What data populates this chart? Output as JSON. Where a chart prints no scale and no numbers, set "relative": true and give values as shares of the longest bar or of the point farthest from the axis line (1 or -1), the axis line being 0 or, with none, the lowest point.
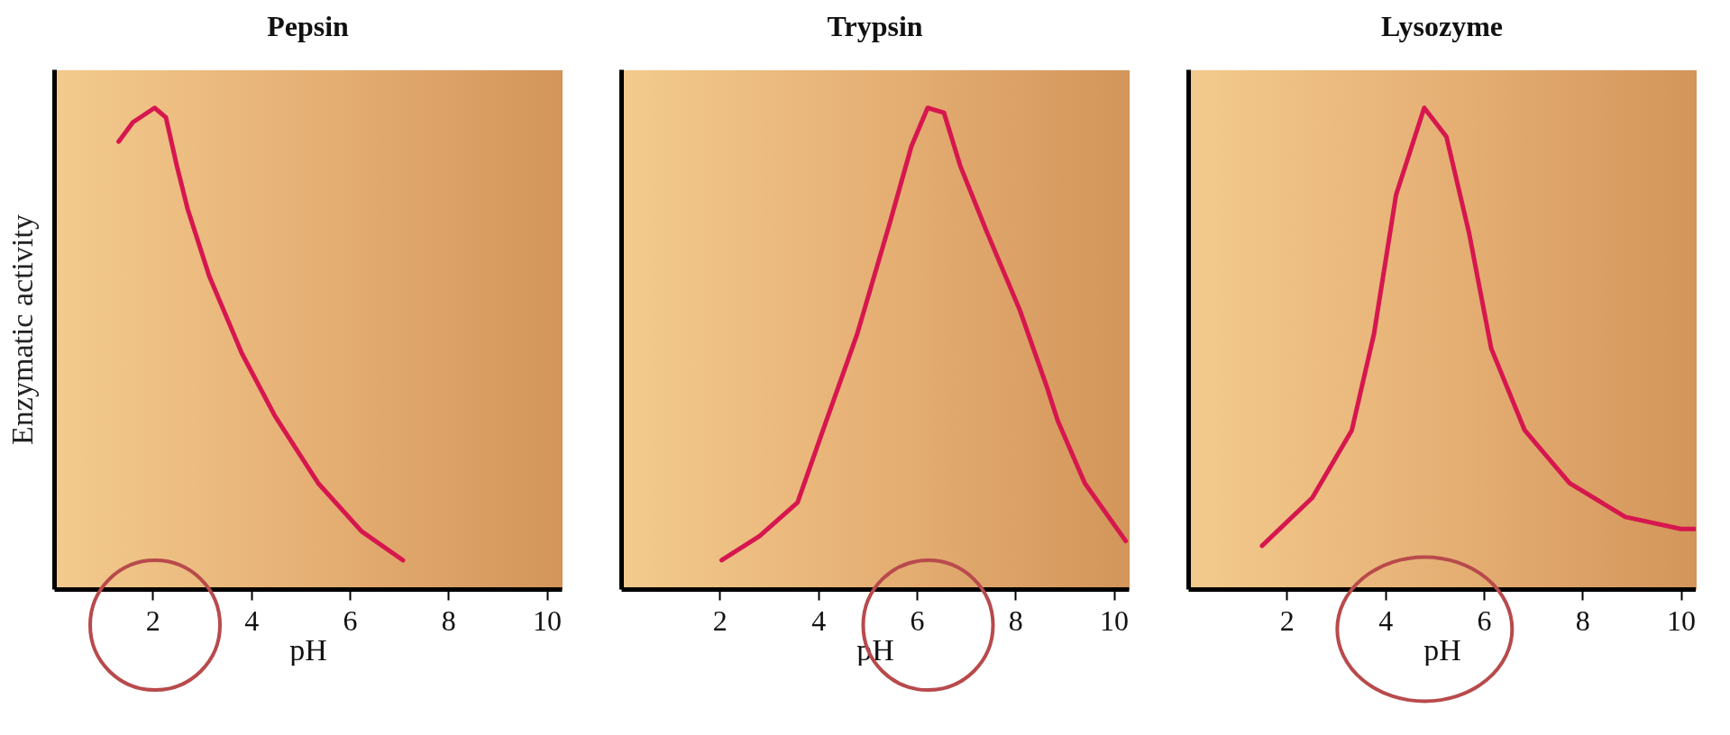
{
  "chart_data": [
    {
      "type": "line",
      "title": "Pepsin",
      "xlabel": "pH",
      "ylabel": "Enzymatic activity",
      "relative": true,
      "xlim": [
        0,
        10.3
      ],
      "xticks": [
        2,
        4,
        6,
        8,
        10
      ],
      "tick_labels": "x",
      "series": [
        {
          "color": "#d6174f",
          "x": [
            1.31,
            1.6,
            2.04,
            2.27,
            2.49,
            2.71,
            3.15,
            3.81,
            4.48,
            5.36,
            6.24,
            7.08
          ],
          "values": [
            0.93,
            0.97,
            1.0,
            0.98,
            0.88,
            0.79,
            0.65,
            0.49,
            0.36,
            0.22,
            0.12,
            0.06
          ]
        }
      ]
    },
    {
      "type": "line",
      "title": "Trypsin",
      "xlabel": "pH",
      "relative": true,
      "xlim": [
        0,
        10.3
      ],
      "xticks": [
        2,
        4,
        6,
        8,
        10
      ],
      "tick_labels": "x",
      "series": [
        {
          "color": "#d6174f",
          "x": [
            2.04,
            2.81,
            3.58,
            4.13,
            4.79,
            5.45,
            5.89,
            6.22,
            6.55,
            6.88,
            7.43,
            8.09,
            8.64,
            8.86,
            9.41,
            10.24
          ],
          "values": [
            0.06,
            0.11,
            0.18,
            0.34,
            0.53,
            0.76,
            0.92,
            1.0,
            0.99,
            0.88,
            0.74,
            0.58,
            0.42,
            0.35,
            0.22,
            0.1
          ]
        }
      ]
    },
    {
      "type": "line",
      "title": "Lysozyme",
      "xlabel": "pH",
      "relative": true,
      "xlim": [
        0,
        10.3
      ],
      "xticks": [
        2,
        4,
        6,
        8,
        10
      ],
      "tick_labels": "x",
      "series": [
        {
          "color": "#d6174f",
          "x": [
            1.5,
            2.52,
            3.32,
            3.77,
            4.22,
            4.79,
            5.24,
            5.7,
            6.15,
            6.83,
            7.74,
            8.87,
            10.0,
            10.3
          ],
          "values": [
            0.09,
            0.19,
            0.33,
            0.53,
            0.82,
            1.0,
            0.94,
            0.74,
            0.5,
            0.33,
            0.22,
            0.15,
            0.125,
            0.125
          ]
        }
      ]
    }
  ]
}
